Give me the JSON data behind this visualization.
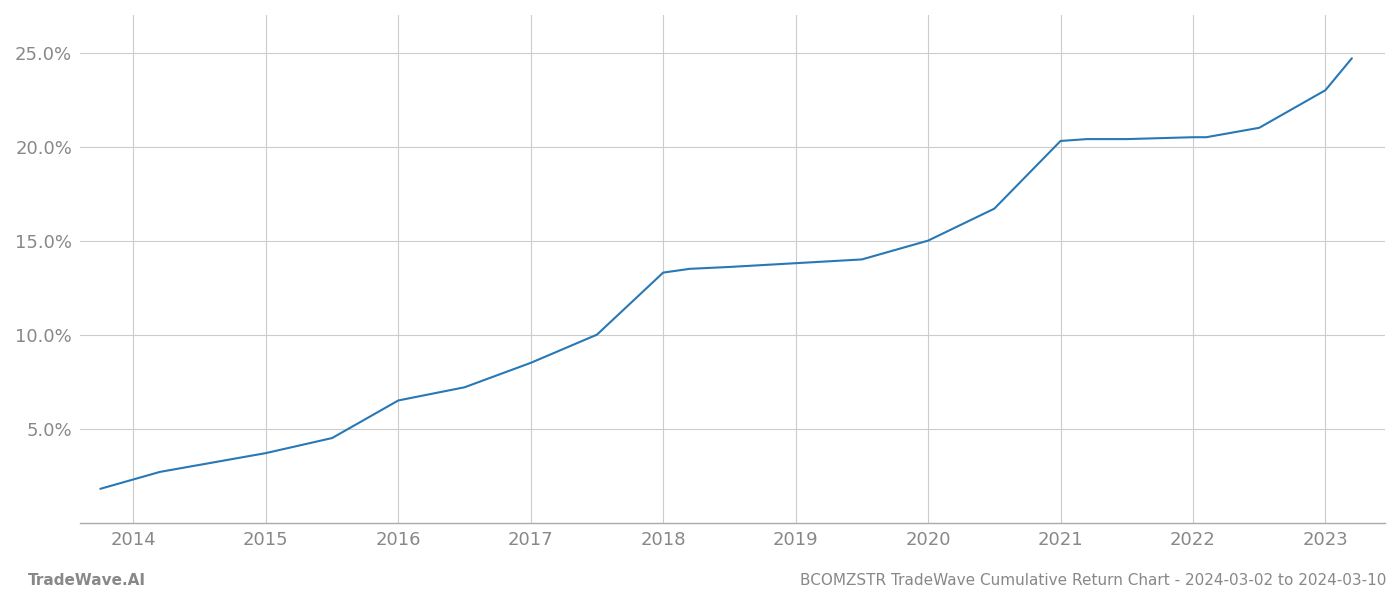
{
  "title": "BCOMZSTR TradeWave Cumulative Return Chart - 2024-03-02 to 2024-03-10",
  "line_color": "#2878b5",
  "line_width": 1.5,
  "background_color": "#ffffff",
  "grid_color": "#cccccc",
  "footer_left": "TradeWave.AI",
  "footer_right": "BCOMZSTR TradeWave Cumulative Return Chart - 2024-03-02 to 2024-03-10",
  "x_years": [
    2014,
    2015,
    2016,
    2017,
    2018,
    2019,
    2020,
    2021,
    2022,
    2023
  ],
  "x_data": [
    2013.75,
    2014.0,
    2014.2,
    2015.0,
    2015.5,
    2016.0,
    2016.5,
    2017.0,
    2017.5,
    2018.0,
    2018.2,
    2018.5,
    2019.0,
    2019.5,
    2020.0,
    2020.5,
    2021.0,
    2021.2,
    2021.5,
    2022.0,
    2022.1,
    2022.5,
    2023.0,
    2023.2
  ],
  "y_data": [
    1.8,
    2.3,
    2.7,
    3.7,
    4.5,
    6.5,
    7.2,
    8.5,
    10.0,
    13.3,
    13.5,
    13.6,
    13.8,
    14.0,
    15.0,
    16.7,
    20.3,
    20.4,
    20.4,
    20.5,
    20.5,
    21.0,
    23.0,
    24.7
  ],
  "xlim_min": 2013.6,
  "xlim_max": 2023.45,
  "ylim_min": 0,
  "ylim_max": 27,
  "yticks": [
    5.0,
    10.0,
    15.0,
    20.0,
    25.0
  ],
  "ytick_labels": [
    "5.0%",
    "10.0%",
    "15.0%",
    "20.0%",
    "25.0%"
  ],
  "tick_label_color": "#888888",
  "tick_label_fontsize": 13,
  "footer_fontsize": 11
}
